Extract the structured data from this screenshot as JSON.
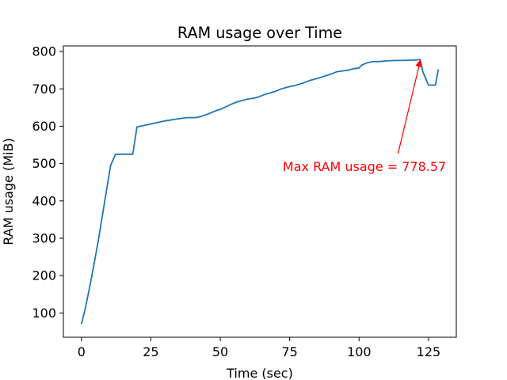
{
  "chart_data": {
    "type": "line",
    "title": "RAM usage over Time",
    "xlabel": "Time (sec)",
    "ylabel": "RAM usage (MiB)",
    "xlim": [
      -6.5,
      135
    ],
    "ylim": [
      35,
      815
    ],
    "xticks": [
      0,
      25,
      50,
      75,
      100,
      125
    ],
    "yticks": [
      100,
      200,
      300,
      400,
      500,
      600,
      700,
      800
    ],
    "grid": false,
    "legend": "none",
    "series": [
      {
        "color": "#1f77b4",
        "x": [
          0,
          1.5,
          3.5,
          6,
          10.5,
          12.3,
          14,
          16,
          18.5,
          20,
          25,
          30,
          35,
          38,
          41,
          43,
          45,
          47,
          49,
          50,
          52,
          54,
          56,
          58,
          60,
          62,
          64,
          66,
          68,
          70,
          72,
          75,
          77,
          80,
          82,
          85,
          88,
          90,
          92,
          94,
          96,
          98,
          100,
          101,
          103,
          105,
          107,
          110,
          113,
          116,
          119,
          120,
          122,
          123,
          125,
          126,
          127.5,
          128.5
        ],
        "y": [
          70,
          115,
          190,
          290,
          495,
          525,
          525,
          525,
          525,
          598,
          606,
          614,
          620,
          623,
          623,
          626,
          631,
          637,
          643,
          645,
          652,
          659,
          665,
          669,
          673,
          675,
          679,
          685,
          689,
          694,
          700,
          706,
          709,
          716,
          722,
          728,
          735,
          740,
          746,
          748,
          750,
          754,
          756,
          764,
          770,
          773,
          773,
          775,
          776,
          776,
          777,
          777,
          778.57,
          745,
          710,
          710,
          710,
          752
        ]
      }
    ],
    "annotation": {
      "text": "Max RAM usage = 778.57",
      "color": "#ff0000",
      "point": [
        122,
        778.57
      ],
      "text_anchor_point": [
        72.5,
        480
      ]
    }
  }
}
